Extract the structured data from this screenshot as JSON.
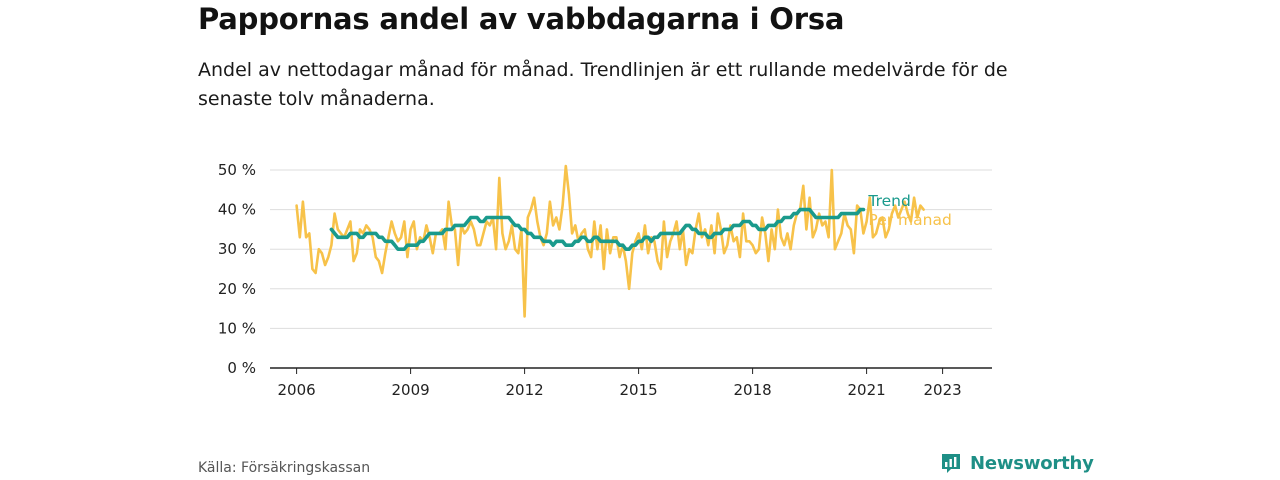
{
  "header": {
    "title": "Pappornas andel av vabbdagarna i Orsa",
    "subtitle": "Andel av nettodagar månad för månad. Trendlinjen är ett rullande medelvärde för de senaste tolv månaderna."
  },
  "footer": {
    "source": "Källa: Försäkringskassan",
    "brand": "Newsworthy",
    "brand_icon": "bar-chart-speech-icon"
  },
  "colors": {
    "trend": "#1a9a8c",
    "monthly": "#f7c24a",
    "grid": "#dddddd",
    "axis": "#222222",
    "brand": "#1e8f86"
  },
  "chart_data": {
    "type": "line",
    "ylim": [
      0,
      50
    ],
    "y_ticks": [
      0,
      10,
      20,
      30,
      40,
      50
    ],
    "y_tick_labels": [
      "0 %",
      "10 %",
      "20 %",
      "30 %",
      "40 %",
      "50 %"
    ],
    "x_ticks": [
      "2006",
      "2009",
      "2012",
      "2015",
      "2018",
      "2021",
      "2023"
    ],
    "x_start": "2006-01",
    "x_end": "2023-12",
    "grid": true,
    "legend_placement": "right-end-of-lines",
    "series": [
      {
        "name": "Trend",
        "start": "2006-12",
        "values": [
          35,
          34,
          33,
          33,
          33,
          33,
          34,
          34,
          34,
          33,
          33,
          34,
          34,
          34,
          34,
          33,
          33,
          32,
          32,
          32,
          31,
          30,
          30,
          30,
          31,
          31,
          31,
          31,
          32,
          32,
          33,
          34,
          34,
          34,
          34,
          34,
          35,
          35,
          35,
          36,
          36,
          36,
          36,
          37,
          38,
          38,
          38,
          37,
          37,
          38,
          38,
          38,
          38,
          38,
          38,
          38,
          38,
          37,
          36,
          36,
          35,
          35,
          34,
          34,
          33,
          33,
          33,
          32,
          32,
          32,
          31,
          32,
          32,
          32,
          31,
          31,
          31,
          32,
          32,
          33,
          33,
          32,
          32,
          33,
          33,
          32,
          32,
          32,
          32,
          32,
          32,
          31,
          31,
          30,
          30,
          31,
          31,
          32,
          32,
          33,
          33,
          32,
          33,
          33,
          34,
          34,
          34,
          34,
          34,
          34,
          34,
          35,
          36,
          36,
          35,
          35,
          34,
          34,
          34,
          33,
          33,
          34,
          34,
          34,
          35,
          35,
          35,
          36,
          36,
          36,
          37,
          37,
          37,
          36,
          36,
          35,
          35,
          35,
          36,
          36,
          36,
          37,
          37,
          38,
          38,
          38,
          39,
          39,
          40,
          40,
          40,
          40,
          39,
          38,
          38,
          38,
          38,
          38,
          38,
          38,
          38,
          39,
          39,
          39,
          39,
          39,
          39,
          40,
          40
        ],
        "end_label": "Trend"
      },
      {
        "name": "Per månad",
        "start": "2006-01",
        "values": [
          41,
          33,
          42,
          33,
          34,
          25,
          24,
          30,
          29,
          26,
          28,
          31,
          39,
          35,
          34,
          33,
          35,
          37,
          27,
          29,
          35,
          34,
          36,
          35,
          33,
          28,
          27,
          24,
          29,
          33,
          37,
          34,
          32,
          33,
          37,
          28,
          35,
          37,
          30,
          33,
          32,
          36,
          33,
          29,
          34,
          34,
          35,
          30,
          42,
          36,
          35,
          26,
          36,
          34,
          35,
          37,
          35,
          31,
          31,
          34,
          37,
          36,
          38,
          30,
          48,
          34,
          30,
          32,
          36,
          30,
          29,
          35,
          13,
          38,
          40,
          43,
          37,
          33,
          31,
          34,
          42,
          36,
          38,
          35,
          41,
          51,
          44,
          34,
          36,
          32,
          34,
          35,
          30,
          28,
          37,
          30,
          36,
          25,
          35,
          29,
          33,
          33,
          28,
          31,
          27,
          20,
          29,
          32,
          34,
          30,
          36,
          29,
          33,
          32,
          27,
          25,
          37,
          28,
          32,
          34,
          37,
          30,
          35,
          26,
          30,
          29,
          35,
          39,
          33,
          35,
          31,
          36,
          29,
          39,
          35,
          29,
          31,
          36,
          32,
          33,
          28,
          39,
          32,
          32,
          31,
          29,
          30,
          38,
          34,
          27,
          35,
          30,
          40,
          33,
          31,
          34,
          30,
          36,
          39,
          40,
          46,
          35,
          43,
          33,
          35,
          39,
          36,
          37,
          33,
          50,
          30,
          32,
          34,
          39,
          36,
          35,
          29,
          41,
          40,
          34,
          37,
          43,
          33,
          34,
          37,
          38,
          33,
          35,
          39,
          41,
          38,
          40,
          42,
          39,
          37,
          43,
          38,
          41,
          40
        ],
        "end_label": "Per månad"
      }
    ]
  }
}
